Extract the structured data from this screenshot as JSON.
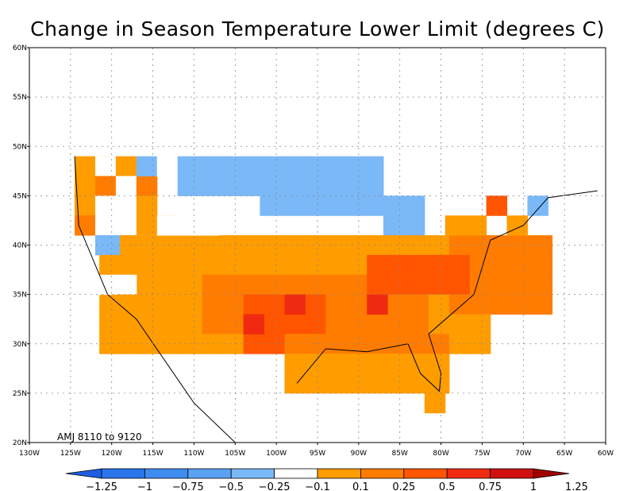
{
  "title": "Change in Season Temperature Lower Limit (degrees C)",
  "period_label": "AMJ 8110 to 9120",
  "lat_ticks": [
    "20N",
    "25N",
    "30N",
    "35N",
    "40N",
    "45N",
    "50N",
    "55N",
    "60N"
  ],
  "lon_ticks": [
    "130W",
    "125W",
    "120W",
    "115W",
    "110W",
    "105W",
    "100W",
    "95W",
    "90W",
    "85W",
    "80W",
    "75W",
    "70W",
    "65W",
    "60W"
  ],
  "colorbar": {
    "labels": [
      "-1.25",
      "-1",
      "-0.75",
      "-0.5",
      "-0.25",
      "-0.1",
      "0.1",
      "0.25",
      "0.5",
      "0.75",
      "1",
      "1.25"
    ],
    "colors": [
      "#1e5fe0",
      "#2a74ec",
      "#3f8cf0",
      "#5aa2f4",
      "#7ab8f8",
      "#ffffff",
      "#ff9c00",
      "#ff7c00",
      "#ff5500",
      "#f02a10",
      "#d01010",
      "#a00000"
    ]
  },
  "legend_colors": {
    "cool": "#7ab8f8",
    "neutral": "#ffffff",
    "warm1": "#ff9c00",
    "warm2": "#ff7c00",
    "warm3": "#ff5500",
    "warm4": "#f02a10"
  }
}
